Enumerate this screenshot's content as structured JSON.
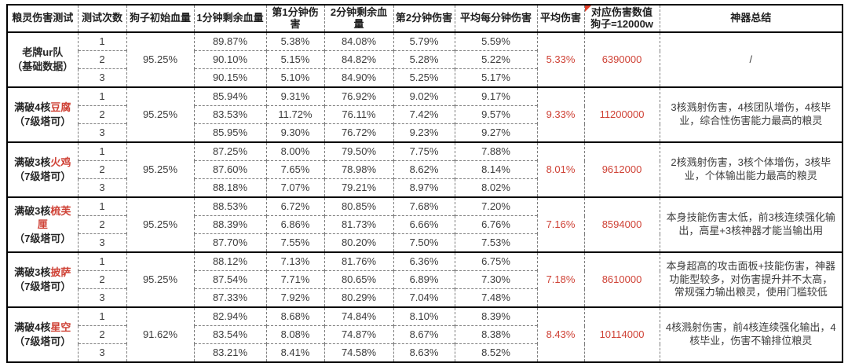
{
  "colors": {
    "accent_red": "#cf4236",
    "text": "#3d3d3d",
    "border": "#000000",
    "dashed_border": "#7f7f7f"
  },
  "header": {
    "col_group": "粮灵伤害测试",
    "col_trial": "测试次数",
    "col_initial_hp": "狗子初始血量",
    "col_hp_1min": "1分钟剩余血量",
    "col_dmg_min1": "第1分钟伤害",
    "col_hp_2min": "2分钟剩余血量",
    "col_dmg_min2": "第2分钟伤害",
    "col_avg_per_min": "平均每分钟伤害",
    "col_avg_dmg": "平均伤害",
    "col_dmg_value_line1": "对应伤害数值",
    "col_dmg_value_line2": "狗子=12000w",
    "col_summary": "神器总结"
  },
  "groups": [
    {
      "name_prefix": "老牌ur队",
      "name_highlight": "",
      "name_line2": "（基础数据）",
      "initial_hp": "95.25%",
      "trials": [
        {
          "no": "1",
          "hp1": "89.87%",
          "dmg1": "5.38%",
          "hp2": "84.08%",
          "dmg2": "5.79%",
          "avg_pm": "5.59%"
        },
        {
          "no": "2",
          "hp1": "90.10%",
          "dmg1": "5.15%",
          "hp2": "84.82%",
          "dmg2": "5.28%",
          "avg_pm": "5.22%"
        },
        {
          "no": "3",
          "hp1": "90.15%",
          "dmg1": "5.10%",
          "hp2": "84.90%",
          "dmg2": "5.25%",
          "avg_pm": "5.17%"
        }
      ],
      "avg_damage": "5.33%",
      "damage_value": "6390000",
      "summary": "/"
    },
    {
      "name_prefix": "满破4核",
      "name_highlight": "豆腐",
      "name_line2": "（7级塔可）",
      "initial_hp": "95.25%",
      "trials": [
        {
          "no": "1",
          "hp1": "85.94%",
          "dmg1": "9.31%",
          "hp2": "76.92%",
          "dmg2": "9.02%",
          "avg_pm": "9.17%"
        },
        {
          "no": "2",
          "hp1": "83.53%",
          "dmg1": "11.72%",
          "hp2": "76.11%",
          "dmg2": "7.42%",
          "avg_pm": "9.57%"
        },
        {
          "no": "3",
          "hp1": "85.95%",
          "dmg1": "9.30%",
          "hp2": "76.72%",
          "dmg2": "9.23%",
          "avg_pm": "9.27%"
        }
      ],
      "avg_damage": "9.33%",
      "damage_value": "11200000",
      "summary": "3核溅射伤害，4核团队增伤，4核毕业，综合性伤害能力最高的粮灵"
    },
    {
      "name_prefix": "满破3核",
      "name_highlight": "火鸡",
      "name_line2": "（7级塔可）",
      "initial_hp": "95.25%",
      "trials": [
        {
          "no": "1",
          "hp1": "87.25%",
          "dmg1": "8.00%",
          "hp2": "79.50%",
          "dmg2": "7.75%",
          "avg_pm": "7.88%"
        },
        {
          "no": "2",
          "hp1": "87.60%",
          "dmg1": "7.65%",
          "hp2": "78.98%",
          "dmg2": "8.62%",
          "avg_pm": "8.14%"
        },
        {
          "no": "3",
          "hp1": "88.18%",
          "dmg1": "7.07%",
          "hp2": "79.21%",
          "dmg2": "8.97%",
          "avg_pm": "8.02%"
        }
      ],
      "avg_damage": "8.01%",
      "damage_value": "9612000",
      "summary": "2核溅射伤害，3核个体增伤，3核毕业，个体输出能力最高的粮灵"
    },
    {
      "name_prefix": "满破3核",
      "name_highlight": "梳芙厘",
      "name_line2": "（7级塔可）",
      "initial_hp": "95.25%",
      "trials": [
        {
          "no": "1",
          "hp1": "88.53%",
          "dmg1": "6.72%",
          "hp2": "80.85%",
          "dmg2": "7.68%",
          "avg_pm": "7.20%"
        },
        {
          "no": "2",
          "hp1": "88.39%",
          "dmg1": "6.86%",
          "hp2": "81.73%",
          "dmg2": "6.66%",
          "avg_pm": "6.76%"
        },
        {
          "no": "3",
          "hp1": "87.70%",
          "dmg1": "7.55%",
          "hp2": "80.20%",
          "dmg2": "7.50%",
          "avg_pm": "7.53%"
        }
      ],
      "avg_damage": "7.16%",
      "damage_value": "8594000",
      "summary": "本身技能伤害太低，前3核连续强化输出，高星+3核神器才能当输出用"
    },
    {
      "name_prefix": "满破3核",
      "name_highlight": "披萨",
      "name_line2": "（7级塔可）",
      "initial_hp": "95.25%",
      "trials": [
        {
          "no": "1",
          "hp1": "88.12%",
          "dmg1": "7.13%",
          "hp2": "81.76%",
          "dmg2": "6.36%",
          "avg_pm": "6.75%"
        },
        {
          "no": "2",
          "hp1": "87.54%",
          "dmg1": "7.71%",
          "hp2": "80.65%",
          "dmg2": "6.89%",
          "avg_pm": "7.30%"
        },
        {
          "no": "3",
          "hp1": "87.33%",
          "dmg1": "7.92%",
          "hp2": "80.29%",
          "dmg2": "7.04%",
          "avg_pm": "7.48%"
        }
      ],
      "avg_damage": "7.18%",
      "damage_value": "8610000",
      "summary": "本身超高的攻击面板+技能伤害，神器功能型较多，对伤害提升并不太高，常规强力输出粮灵，使用门槛较低"
    },
    {
      "name_prefix": "满破4核",
      "name_highlight": "星空",
      "name_line2": "（7级塔可）",
      "initial_hp": "91.62%",
      "trials": [
        {
          "no": "1",
          "hp1": "82.94%",
          "dmg1": "8.68%",
          "hp2": "74.84%",
          "dmg2": "8.10%",
          "avg_pm": "8.39%"
        },
        {
          "no": "2",
          "hp1": "83.54%",
          "dmg1": "8.08%",
          "hp2": "74.87%",
          "dmg2": "8.67%",
          "avg_pm": "8.38%"
        },
        {
          "no": "3",
          "hp1": "83.21%",
          "dmg1": "8.41%",
          "hp2": "74.58%",
          "dmg2": "8.63%",
          "avg_pm": "8.52%"
        }
      ],
      "avg_damage": "8.43%",
      "damage_value": "10114000",
      "summary": "4核溅射伤害，前4核连续强化输出，4核毕业，伤害不输排位粮灵"
    }
  ]
}
